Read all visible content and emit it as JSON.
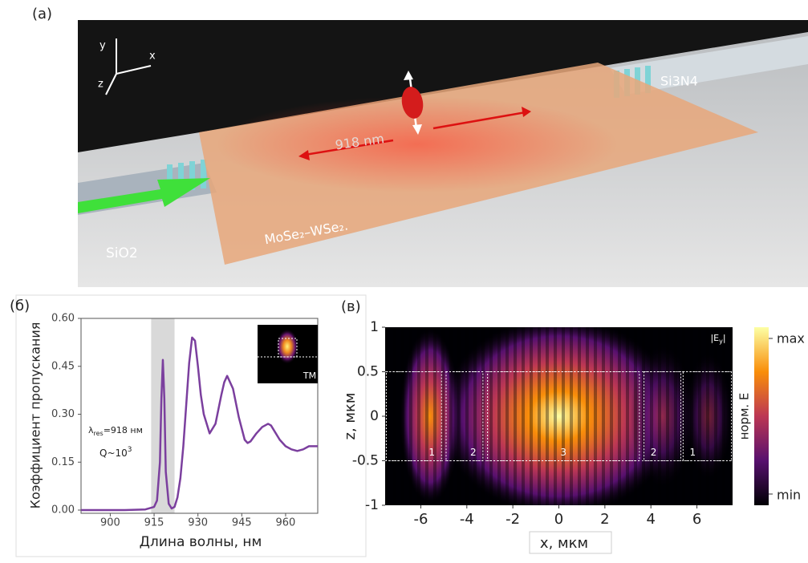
{
  "illustration": {
    "label": "(a)",
    "axes": [
      "y",
      "x",
      "z"
    ],
    "wavelength": "918 nm",
    "substrate": "SiO2",
    "waveguide": "Si3N4",
    "material": "MoSe₂–WSe₂."
  },
  "chart_data": [
    {
      "type": "line",
      "panel": "(б)",
      "ylabel": "Коэффициент пропускания",
      "xlabel": "Длина волны, нм",
      "xlim": [
        890,
        971
      ],
      "xticks": [
        900,
        915,
        930,
        945,
        960
      ],
      "ylim": [
        -0.01,
        0.6
      ],
      "yticks": [
        {
          "value": 0,
          "label": "0.00"
        },
        {
          "value": 0.15,
          "label": "0.15"
        },
        {
          "value": 0.3,
          "label": "0.30"
        },
        {
          "value": 0.45,
          "label": "0.45"
        },
        {
          "value": 0.6,
          "label": "0.60"
        }
      ],
      "highlight": [
        914,
        922
      ],
      "color": "#7b3f9e",
      "x": [
        890,
        905,
        912,
        915,
        916,
        917,
        917.5,
        918,
        918.5,
        919,
        920,
        921,
        922,
        923,
        924,
        925,
        926,
        927,
        928,
        929,
        930,
        931,
        932,
        934,
        936,
        938,
        939,
        940,
        942,
        944,
        946,
        947,
        948,
        950,
        952,
        954,
        955,
        956,
        958,
        960,
        962,
        964,
        966,
        968,
        971
      ],
      "values": [
        0,
        0,
        0.002,
        0.01,
        0.03,
        0.15,
        0.35,
        0.47,
        0.35,
        0.12,
        0.02,
        0.005,
        0.01,
        0.04,
        0.1,
        0.2,
        0.33,
        0.46,
        0.54,
        0.53,
        0.45,
        0.36,
        0.3,
        0.24,
        0.27,
        0.36,
        0.4,
        0.42,
        0.38,
        0.29,
        0.22,
        0.21,
        0.215,
        0.24,
        0.26,
        0.27,
        0.265,
        0.25,
        0.22,
        0.2,
        0.19,
        0.185,
        0.19,
        0.2,
        0.2
      ],
      "resonance_label": {
        "symbol": "λ",
        "subscript": "res",
        "text": "=918 нм"
      },
      "q_label": {
        "text": "Q~10",
        "superscript": "3"
      },
      "inset_label": "TM"
    },
    {
      "type": "heatmap",
      "panel": "(в)",
      "xlabel": "x, мкм",
      "ylabel": "z, мкм",
      "xlim": [
        -7.55,
        7.55
      ],
      "xticks": [
        -6,
        -4,
        -2,
        0,
        2,
        4,
        6
      ],
      "ylim": [
        -1,
        1
      ],
      "yticks": [
        -1,
        -0.5,
        0,
        0.5,
        1
      ],
      "field_label": {
        "text": "|E",
        "subscript": "y",
        "end": "|"
      },
      "colormap": [
        "#000004",
        "#57106e",
        "#bc3754",
        "#f98e09",
        "#fcffa4"
      ],
      "colorbar": {
        "max": "max",
        "min": "min",
        "label": "норм. E"
      },
      "core_z": [
        -0.5,
        0.5
      ],
      "regions": [
        {
          "label": "1",
          "x": [
            -7.5,
            -5.1
          ]
        },
        {
          "label": "2",
          "x": [
            -4.9,
            -3.3
          ]
        },
        {
          "label": "3",
          "x": [
            -3.1,
            3.5
          ]
        },
        {
          "label": "2",
          "x": [
            3.7,
            5.3
          ]
        },
        {
          "label": "1",
          "x": [
            5.4,
            7.5
          ]
        }
      ]
    }
  ]
}
